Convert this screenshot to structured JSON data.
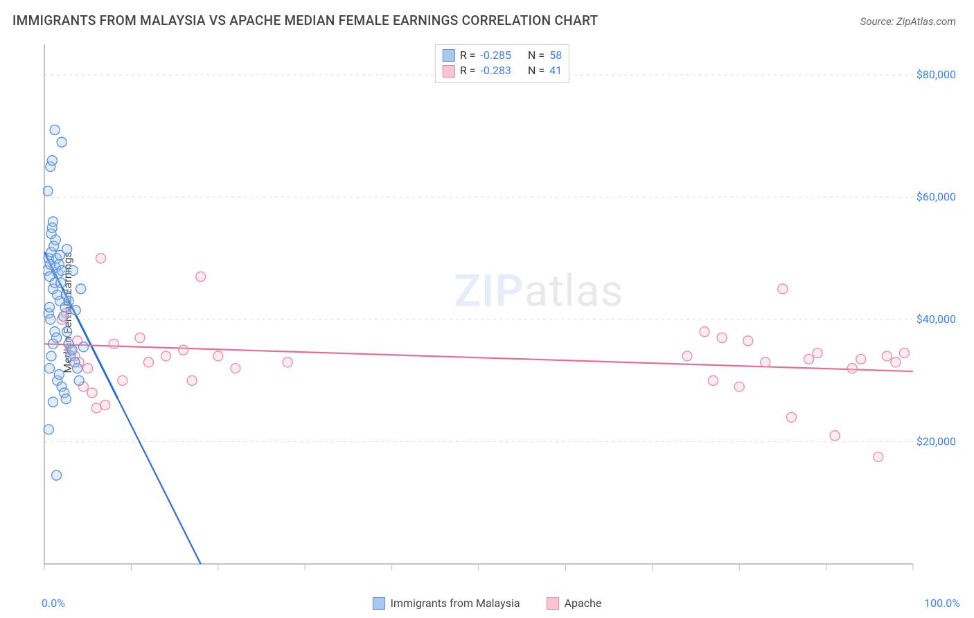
{
  "title": "IMMIGRANTS FROM MALAYSIA VS APACHE MEDIAN FEMALE EARNINGS CORRELATION CHART",
  "source_prefix": "Source: ",
  "source": "ZipAtlas.com",
  "ylabel": "Median Female Earnings",
  "watermark_a": "ZIP",
  "watermark_b": "atlas",
  "chart": {
    "type": "scatter",
    "background_color": "#ffffff",
    "grid_color": "#dcdcdc",
    "axis_color": "#888888",
    "tick_color": "#bbbbbb",
    "ytick_label_color": "#3b82f6",
    "xlim": [
      0,
      100
    ],
    "ylim": [
      0,
      85000
    ],
    "x_tick_positions": [
      0,
      10,
      20,
      30,
      40,
      50,
      60,
      70,
      80,
      90,
      100
    ],
    "y_gridlines": [
      20000,
      40000,
      60000,
      80000
    ],
    "y_tick_labels": [
      "$20,000",
      "$40,000",
      "$60,000",
      "$80,000"
    ],
    "x_axis_labels": {
      "min": "0.0%",
      "max": "100.0%"
    },
    "marker_radius": 7,
    "marker_stroke_width": 1.3,
    "marker_fill_opacity": 0.35,
    "trend_line_width": 2.2,
    "trend_dash": "5,4",
    "series": [
      {
        "name": "Immigrants from Malaysia",
        "color_fill": "#a8c8f0",
        "color_stroke": "#5a8fd6",
        "trend_color": "#2f6fc9",
        "R": "-0.285",
        "N": "58",
        "trend": {
          "x1": 0,
          "y1": 51000,
          "x2": 18,
          "y2": 0
        },
        "points": [
          [
            0.3,
            48000
          ],
          [
            0.5,
            50000
          ],
          [
            0.6,
            47000
          ],
          [
            0.7,
            49000
          ],
          [
            0.8,
            51000
          ],
          [
            1.0,
            45000
          ],
          [
            1.1,
            52000
          ],
          [
            1.2,
            46000
          ],
          [
            1.3,
            48500
          ],
          [
            1.4,
            50000
          ],
          [
            1.5,
            44000
          ],
          [
            1.6,
            47500
          ],
          [
            1.7,
            49000
          ],
          [
            1.8,
            43000
          ],
          [
            1.9,
            46000
          ],
          [
            2.0,
            48000
          ],
          [
            0.9,
            55000
          ],
          [
            1.0,
            56000
          ],
          [
            0.8,
            54000
          ],
          [
            1.3,
            53000
          ],
          [
            0.5,
            41000
          ],
          [
            0.6,
            42000
          ],
          [
            0.7,
            40000
          ],
          [
            2.2,
            40500
          ],
          [
            2.4,
            42000
          ],
          [
            2.6,
            38000
          ],
          [
            2.8,
            36000
          ],
          [
            3.0,
            34000
          ],
          [
            3.2,
            35000
          ],
          [
            3.5,
            33000
          ],
          [
            3.8,
            32000
          ],
          [
            4.0,
            30000
          ],
          [
            1.2,
            38000
          ],
          [
            1.4,
            37000
          ],
          [
            1.0,
            36000
          ],
          [
            0.8,
            34000
          ],
          [
            0.6,
            32000
          ],
          [
            1.5,
            30000
          ],
          [
            1.7,
            31000
          ],
          [
            2.0,
            29000
          ],
          [
            2.3,
            28000
          ],
          [
            2.5,
            27000
          ],
          [
            0.4,
            61000
          ],
          [
            0.7,
            65000
          ],
          [
            0.9,
            66000
          ],
          [
            1.2,
            71000
          ],
          [
            2.0,
            69000
          ],
          [
            2.5,
            44000
          ],
          [
            0.5,
            22000
          ],
          [
            4.2,
            45000
          ],
          [
            2.8,
            43000
          ],
          [
            3.3,
            48000
          ],
          [
            1.8,
            50500
          ],
          [
            2.6,
            51500
          ],
          [
            3.6,
            41500
          ],
          [
            4.5,
            35500
          ],
          [
            1.4,
            14500
          ],
          [
            1.0,
            26500
          ]
        ]
      },
      {
        "name": "Apache",
        "color_fill": "#f7c6d2",
        "color_stroke": "#e989a6",
        "trend_color": "#e86b93",
        "R": "-0.283",
        "N": "41",
        "trend": {
          "x1": 0,
          "y1": 36000,
          "x2": 100,
          "y2": 31500
        },
        "points": [
          [
            2.0,
            40000
          ],
          [
            3.0,
            35000
          ],
          [
            3.5,
            34000
          ],
          [
            4.0,
            33000
          ],
          [
            5.0,
            32000
          ],
          [
            5.5,
            28000
          ],
          [
            6.5,
            50000
          ],
          [
            8.0,
            36000
          ],
          [
            9.0,
            30000
          ],
          [
            11.0,
            37000
          ],
          [
            12.0,
            33000
          ],
          [
            14.0,
            34000
          ],
          [
            16.0,
            35000
          ],
          [
            17.0,
            30000
          ],
          [
            18.0,
            47000
          ],
          [
            20.0,
            34000
          ],
          [
            22.0,
            32000
          ],
          [
            28.0,
            33000
          ],
          [
            2.5,
            41000
          ],
          [
            3.8,
            36500
          ],
          [
            6.0,
            25500
          ],
          [
            7.0,
            26000
          ],
          [
            4.5,
            29000
          ],
          [
            74.0,
            34000
          ],
          [
            76.0,
            38000
          ],
          [
            77.0,
            30000
          ],
          [
            78.0,
            37000
          ],
          [
            80.0,
            29000
          ],
          [
            81.0,
            36500
          ],
          [
            83.0,
            33000
          ],
          [
            85.0,
            45000
          ],
          [
            86.0,
            24000
          ],
          [
            88.0,
            33500
          ],
          [
            89.0,
            34500
          ],
          [
            91.0,
            21000
          ],
          [
            93.0,
            32000
          ],
          [
            94.0,
            33500
          ],
          [
            96.0,
            17500
          ],
          [
            97.0,
            34000
          ],
          [
            98.0,
            33000
          ],
          [
            99.0,
            34500
          ]
        ]
      }
    ]
  },
  "legend_labels": {
    "R": "R =",
    "N": "N ="
  }
}
